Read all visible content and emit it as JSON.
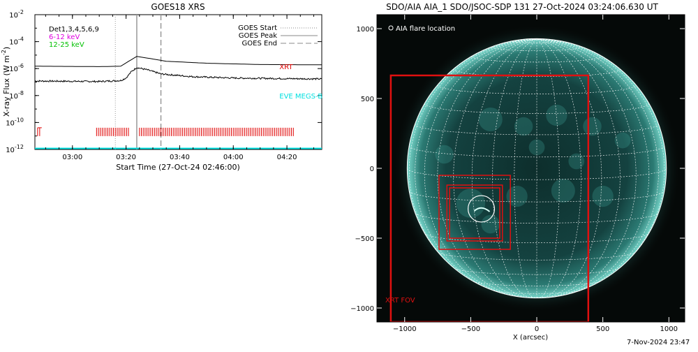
{
  "footer_timestamp": "7-Nov-2024 23:47",
  "chart_data": [
    {
      "type": "line",
      "title": "GOES18 XRS",
      "xlabel": "Start Time (27-Oct-24 02:46:00)",
      "ylabel": "X-ray Flux (W m",
      "ylabel_units": "-2",
      "ylabel_close": ")",
      "log_scale_y": true,
      "xlim": [
        "02:46",
        "04:33"
      ],
      "ylim": [
        1e-12,
        0.01
      ],
      "x_ticks": [
        {
          "t": "03:00",
          "label": "03:00"
        },
        {
          "t": "03:20",
          "label": "03:20"
        },
        {
          "t": "03:40",
          "label": "03:40"
        },
        {
          "t": "04:00",
          "label": "04:00"
        },
        {
          "t": "04:20",
          "label": "04:20"
        }
      ],
      "y_ticks": [
        {
          "v": 1e-12,
          "base": "10",
          "exp": "-12"
        },
        {
          "v": 1e-10,
          "base": "10",
          "exp": "-10"
        },
        {
          "v": 1e-08,
          "base": "10",
          "exp": "-8"
        },
        {
          "v": 1e-06,
          "base": "10",
          "exp": "-6"
        },
        {
          "v": 0.0001,
          "base": "10",
          "exp": "-4"
        },
        {
          "v": 0.01,
          "base": "10",
          "exp": "-2"
        }
      ],
      "legend_left": [
        {
          "text": "Det1,3,4,5,6,9",
          "color": "#000000"
        },
        {
          "text": "6-12 keV",
          "color": "#e000e0"
        },
        {
          "text": "12-25 keV",
          "color": "#00c000"
        }
      ],
      "legend_right": [
        {
          "text": "GOES Start",
          "style": "dotted"
        },
        {
          "text": "GOES Peak",
          "style": "solid"
        },
        {
          "text": "GOES End",
          "style": "dashed"
        }
      ],
      "event_lines": {
        "start": "03:16",
        "peak": "03:24",
        "end": "03:33"
      },
      "series": [
        {
          "color": "#000000",
          "points": [
            [
              "02:46",
              1.5e-06
            ],
            [
              "03:10",
              1.4e-06
            ],
            [
              "03:18",
              1.5e-06
            ],
            [
              "03:21",
              3.5e-06
            ],
            [
              "03:24",
              8e-06
            ],
            [
              "03:28",
              6e-06
            ],
            [
              "03:35",
              3.5e-06
            ],
            [
              "03:50",
              2.5e-06
            ],
            [
              "04:10",
              2e-06
            ],
            [
              "04:33",
              1.9e-06
            ]
          ]
        },
        {
          "color": "#000000",
          "noisy": true,
          "points": [
            [
              "02:46",
              1.2e-07
            ],
            [
              "03:10",
              1.1e-07
            ],
            [
              "03:18",
              1.3e-07
            ],
            [
              "03:20",
              2e-07
            ],
            [
              "03:22",
              6e-07
            ],
            [
              "03:24",
              1.2e-06
            ],
            [
              "03:28",
              8e-07
            ],
            [
              "03:33",
              4e-07
            ],
            [
              "03:45",
              2.5e-07
            ],
            [
              "04:00",
              2e-07
            ],
            [
              "04:20",
              1.8e-07
            ],
            [
              "04:33",
              1.7e-07
            ]
          ]
        }
      ],
      "instrument_labels": [
        {
          "text": "XRT",
          "color": "#e00000",
          "at": [
            "04:25",
            1.5e-06
          ]
        },
        {
          "text": "EVE MEGS-B",
          "color": "#00e0e0",
          "at": [
            "04:25",
            1e-08
          ]
        }
      ],
      "xrt_observations": {
        "color": "#e00000",
        "level": 2e-11,
        "ranges": [
          [
            "03:09",
            "03:21"
          ],
          [
            "03:25",
            "04:23"
          ]
        ],
        "gap": [
          "03:22",
          "03:24"
        ],
        "left_marker": "02:47"
      },
      "eve_level": 1.2e-12
    },
    {
      "type": "heatmap",
      "title": "SDO/AIA AIA_1 SDO/JSOC-SDP 131 27-Oct-2024 03:24:06.630 UT",
      "xlabel": "X (arcsec)",
      "ylabel": "",
      "xlim": [
        -1210,
        1120
      ],
      "ylim": [
        -1100,
        1100
      ],
      "x_ticks": [
        -1000,
        -500,
        0,
        500,
        1000
      ],
      "y_ticks": [
        -1000,
        -500,
        0,
        500,
        1000
      ],
      "solar_radius_arcsec": 981,
      "legend": [
        {
          "text": "AIA flare location",
          "symbol": "circle"
        }
      ],
      "fov_label": "XRT FOV",
      "fov_boxes": [
        {
          "x": [
            -1105,
            390
          ],
          "y": [
            -1100,
            665
          ]
        },
        {
          "x": [
            -740,
            -200
          ],
          "y": [
            -580,
            -50
          ]
        },
        {
          "x": [
            -680,
            -260
          ],
          "y": [
            -520,
            -120
          ]
        },
        {
          "x": [
            -660,
            -280
          ],
          "y": [
            -500,
            -140
          ]
        }
      ],
      "flare_circle": {
        "center": [
          -420,
          -290
        ],
        "radius": 100
      },
      "colors": {
        "disk": "#123a38",
        "limb": "#6fd2c6",
        "grid": "#ffffff",
        "fov": "#e01010"
      }
    }
  ]
}
